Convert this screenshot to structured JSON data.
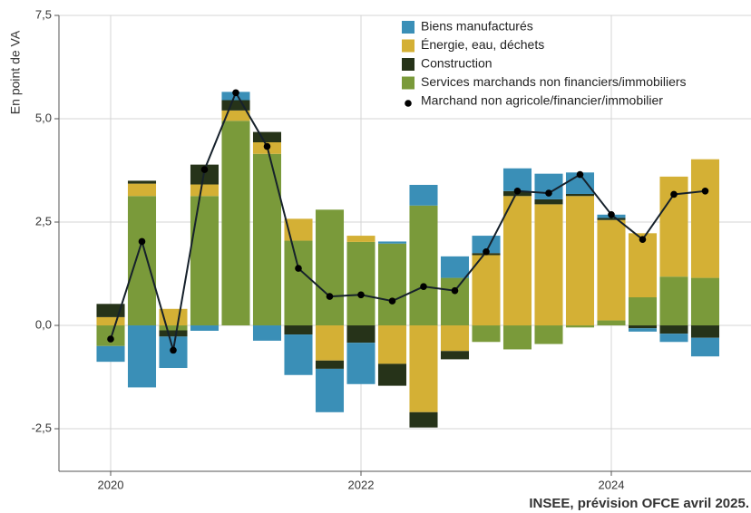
{
  "chart_data": {
    "type": "bar",
    "ylabel": "En point de VA",
    "source": "INSEE, prévision OFCE avril 2025.",
    "x": [
      2020,
      2020.25,
      2020.5,
      2020.75,
      2021,
      2021.25,
      2021.5,
      2021.75,
      2022,
      2022.25,
      2022.5,
      2022.75,
      2023,
      2023.25,
      2023.5,
      2023.75,
      2024,
      2024.25,
      2024.5,
      2024.75
    ],
    "series": [
      {
        "name": "Biens manufacturés",
        "color": "#3a8fb7",
        "values": [
          -0.38,
          -1.5,
          -0.76,
          -0.13,
          0.2,
          -0.37,
          -0.98,
          -1.05,
          -1.0,
          0.05,
          0.5,
          0.52,
          0.42,
          0.55,
          0.62,
          0.52,
          0.08,
          -0.08,
          -0.2,
          -0.45
        ]
      },
      {
        "name": "Énergie, eau, déchets",
        "color": "#d4b035",
        "values": [
          0.2,
          0.3,
          0.4,
          0.28,
          0.25,
          0.28,
          0.53,
          -0.85,
          0.15,
          -0.93,
          -2.1,
          -0.62,
          1.7,
          3.13,
          2.93,
          3.13,
          2.43,
          1.55,
          2.42,
          2.87
        ]
      },
      {
        "name": "Construction",
        "color": "#263319",
        "values": [
          0.32,
          0.07,
          -0.15,
          0.48,
          0.25,
          0.25,
          -0.22,
          -0.2,
          -0.42,
          -0.53,
          -0.37,
          -0.2,
          0.05,
          0.12,
          0.12,
          0.05,
          0.05,
          -0.07,
          -0.2,
          -0.3
        ]
      },
      {
        "name": "Services marchands non financiers/immobiliers",
        "color": "#7a9a3a",
        "values": [
          -0.5,
          3.13,
          -0.12,
          3.13,
          4.95,
          4.15,
          2.05,
          2.8,
          2.02,
          1.98,
          2.9,
          1.15,
          -0.4,
          -0.58,
          -0.45,
          -0.05,
          0.12,
          0.68,
          1.18,
          1.15
        ]
      }
    ],
    "line": {
      "name": "Marchand non agricole/financier/immobilier",
      "color": "#16212b",
      "values": [
        -0.33,
        2.03,
        -0.6,
        3.77,
        5.63,
        4.33,
        1.38,
        0.7,
        0.74,
        0.59,
        0.94,
        0.84,
        1.78,
        3.25,
        3.2,
        3.65,
        2.68,
        2.08,
        3.17,
        3.25
      ]
    },
    "xlim": [
      2019.587,
      2025.116
    ],
    "xticks": [
      2020,
      2022,
      2024
    ],
    "ylim": [
      -3.53,
      7.5
    ],
    "yticks": [
      {
        "value": -2.5,
        "label": "-2,5"
      },
      {
        "value": 0,
        "label": "0,0"
      },
      {
        "value": 2.5,
        "label": "2,5"
      },
      {
        "value": 5,
        "label": "5,0"
      },
      {
        "value": 7.5,
        "label": "7,5"
      }
    ],
    "grid": true
  }
}
